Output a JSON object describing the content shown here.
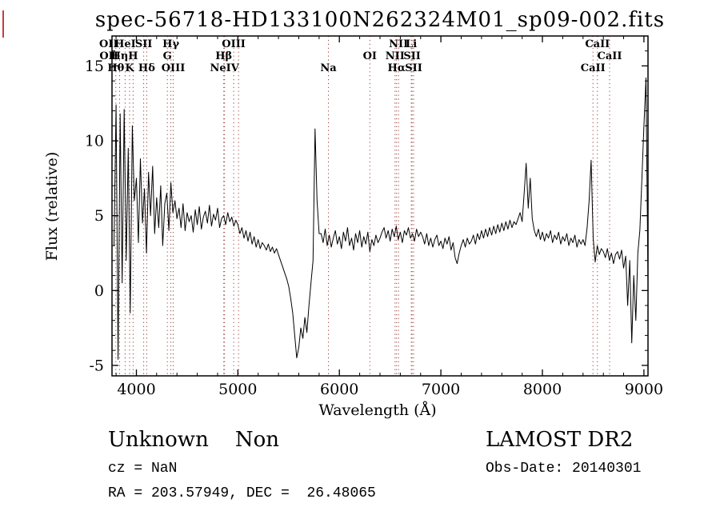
{
  "title": "spec-56718-HD133100N262324M01_sp09-002.fits",
  "annotations": {
    "class_label": "Unknown    Non",
    "survey": "LAMOST DR2",
    "cz": "cz = NaN",
    "obs_date": "Obs-Date: 20140301",
    "ra_dec": "RA = 203.57949, DEC =  26.48065"
  },
  "chart_data": {
    "type": "line",
    "title": "spec-56718-HD133100N262324M01_sp09-002.fits",
    "xlabel": "Wavelength (Å)",
    "ylabel": "Flux (relative)",
    "xlim": [
      3760,
      9040
    ],
    "ylim": [
      -5.7,
      17.0
    ],
    "x_ticks": [
      4000,
      5000,
      6000,
      7000,
      8000,
      9000
    ],
    "y_ticks": [
      -5,
      0,
      5,
      10,
      15
    ],
    "x_minor_step": 200,
    "y_minor_step": 1,
    "grid": false,
    "legend": false,
    "line_color": "#000000",
    "marker_color": "#9e4a4a",
    "series": [
      {
        "name": "flux",
        "x_start": 3780,
        "x_step": 20,
        "values": [
          3.0,
          12.4,
          -4.6,
          11.8,
          0.5,
          12.1,
          2.0,
          9.5,
          -1.5,
          11.0,
          6.0,
          7.5,
          3.2,
          8.8,
          4.5,
          6.8,
          2.5,
          7.9,
          5.0,
          8.3,
          3.8,
          6.2,
          4.2,
          7.0,
          3.0,
          5.8,
          6.5,
          4.0,
          7.2,
          5.2,
          6.0,
          4.8,
          5.5,
          4.2,
          5.8,
          4.0,
          5.2,
          4.6,
          5.0,
          3.9,
          5.4,
          4.4,
          5.6,
          4.1,
          4.9,
          5.3,
          4.5,
          5.7,
          4.3,
          5.1,
          4.7,
          5.5,
          4.2,
          4.8,
          5.0,
          4.4,
          5.2,
          4.6,
          4.9,
          4.3,
          4.7,
          4.4,
          3.8,
          4.2,
          3.5,
          4.0,
          3.3,
          3.9,
          3.1,
          3.6,
          2.9,
          3.4,
          2.8,
          3.2,
          3.0,
          2.7,
          3.1,
          2.6,
          2.9,
          2.5,
          2.8,
          2.4,
          2.0,
          1.6,
          1.2,
          0.8,
          0.3,
          -0.5,
          -1.5,
          -3.0,
          -4.5,
          -3.8,
          -2.5,
          -3.2,
          -1.8,
          -2.8,
          -1.0,
          0.5,
          2.0,
          10.8,
          6.0,
          3.8,
          3.8,
          3.2,
          4.1,
          3.0,
          3.7,
          2.9,
          3.5,
          4.0,
          3.1,
          3.6,
          2.8,
          3.9,
          3.3,
          4.2,
          3.0,
          3.5,
          2.7,
          3.8,
          3.2,
          4.0,
          2.9,
          3.6,
          3.1,
          3.9,
          2.6,
          3.4,
          3.0,
          3.7,
          3.2,
          3.5,
          3.9,
          4.2,
          3.5,
          4.0,
          3.3,
          4.1,
          3.6,
          4.3,
          3.4,
          3.9,
          3.2,
          4.0,
          3.7,
          4.2,
          3.5,
          3.8,
          3.3,
          4.1,
          3.6,
          3.9,
          3.6,
          3.1,
          3.8,
          3.0,
          3.5,
          2.9,
          3.4,
          3.7,
          3.0,
          3.3,
          2.8,
          3.5,
          3.1,
          3.6,
          2.7,
          3.2,
          2.2,
          1.8,
          2.5,
          3.0,
          3.4,
          2.9,
          3.5,
          3.1,
          3.3,
          3.7,
          3.1,
          3.8,
          3.4,
          4.0,
          3.5,
          4.1,
          3.6,
          4.2,
          3.7,
          4.3,
          3.8,
          4.4,
          3.9,
          4.5,
          4.0,
          4.6,
          4.1,
          4.7,
          4.2,
          4.6,
          4.4,
          4.8,
          5.2,
          4.6,
          6.5,
          8.5,
          5.5,
          7.5,
          4.8,
          4.0,
          3.6,
          4.1,
          3.4,
          3.9,
          3.3,
          3.8,
          3.5,
          4.0,
          3.2,
          3.7,
          3.4,
          3.9,
          3.1,
          3.6,
          3.3,
          3.8,
          3.0,
          3.5,
          3.2,
          3.7,
          2.9,
          3.4,
          3.1,
          3.4,
          3.0,
          4.2,
          6.0,
          8.7,
          3.5,
          1.9,
          3.0,
          2.4,
          2.8,
          2.6,
          2.2,
          2.8,
          2.0,
          2.5,
          1.8,
          2.4,
          2.6,
          2.1,
          2.7,
          1.5,
          2.3,
          -1.0,
          2.0,
          -3.5,
          1.0,
          -2.0,
          2.5,
          4.0,
          7.5,
          11.0,
          14.2,
          0.5
        ]
      }
    ],
    "spectral_lines": [
      {
        "label": "OII",
        "wavelength": 3727,
        "row": 1
      },
      {
        "label": "OII",
        "wavelength": 3729,
        "row": 2
      },
      {
        "label": "Hθ",
        "wavelength": 3798,
        "row": 3
      },
      {
        "label": "Hη",
        "wavelength": 3835,
        "row": 2
      },
      {
        "label": "HeI",
        "wavelength": 3889,
        "row": 1
      },
      {
        "label": "K",
        "wavelength": 3933,
        "row": 3
      },
      {
        "label": "H",
        "wavelength": 3968,
        "row": 2
      },
      {
        "label": "SII",
        "wavelength": 4072,
        "row": 1
      },
      {
        "label": "Hδ",
        "wavelength": 4102,
        "row": 3
      },
      {
        "label": "G",
        "wavelength": 4305,
        "row": 2
      },
      {
        "label": "Hγ",
        "wavelength": 4340,
        "row": 1
      },
      {
        "label": "OIII",
        "wavelength": 4363,
        "row": 3
      },
      {
        "label": "Hβ",
        "wavelength": 4861,
        "row": 2
      },
      {
        "label": "NeIV",
        "wavelength": 4869,
        "row": 3
      },
      {
        "label": "OIII",
        "wavelength": 4959,
        "row": 1
      },
      {
        "label": "",
        "wavelength": 5007,
        "row": 0
      },
      {
        "label": "Na",
        "wavelength": 5892,
        "row": 3
      },
      {
        "label": "OI",
        "wavelength": 6300,
        "row": 2
      },
      {
        "label": "NII",
        "wavelength": 6548,
        "row": 2
      },
      {
        "label": "Hα",
        "wavelength": 6563,
        "row": 3
      },
      {
        "label": "NII",
        "wavelength": 6583,
        "row": 1
      },
      {
        "label": "Li",
        "wavelength": 6708,
        "row": 1
      },
      {
        "label": "SII",
        "wavelength": 6716,
        "row": 2
      },
      {
        "label": "SII",
        "wavelength": 6731,
        "row": 3
      },
      {
        "label": "CaII",
        "wavelength": 8498,
        "row": 3
      },
      {
        "label": "CaII",
        "wavelength": 8542,
        "row": 1
      },
      {
        "label": "CaII",
        "wavelength": 8662,
        "row": 2
      }
    ]
  }
}
